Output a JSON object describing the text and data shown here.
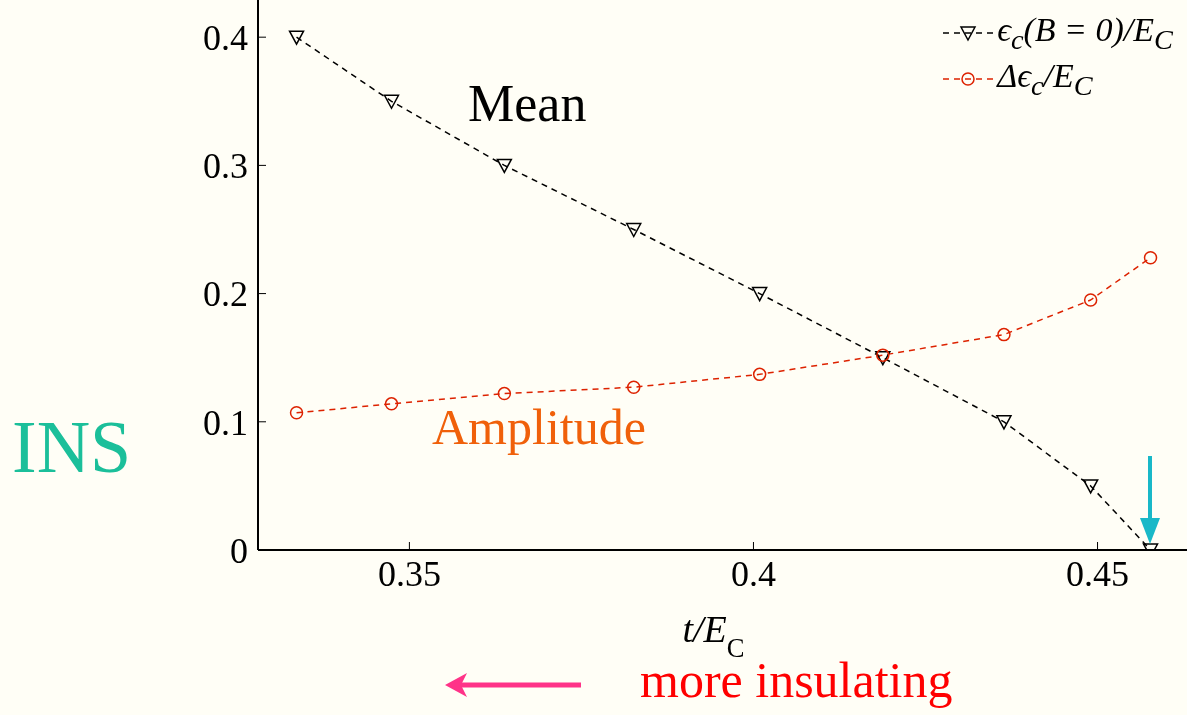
{
  "chart_data": {
    "type": "line",
    "xlabel": "t/E$_{C}$",
    "xlim": [
      0.328,
      0.463
    ],
    "xticks": [
      0.35,
      0.4,
      0.45
    ],
    "ylim": [
      0,
      0.429
    ],
    "yticks": [
      0,
      0.1,
      0.2,
      0.3,
      0.4
    ],
    "legend": "top right",
    "line_style": "dashed",
    "x": [
      0.3336,
      0.3474,
      0.3638,
      0.3826,
      0.4009,
      0.4188,
      0.4364,
      0.449,
      0.4577
    ],
    "series": [
      {
        "name": "ϵ$_{c}$(B = 0)/E$_{C}$",
        "color": "#000000",
        "marker": "triangle",
        "values": [
          0.4,
          0.35,
          0.3,
          0.25,
          0.2,
          0.15,
          0.1,
          0.05,
          0
        ]
      },
      {
        "name": "Δϵ$_{c}$/E$_{C}$",
        "color": "#dd2200",
        "marker": "circle",
        "values": [
          0.107,
          0.114,
          0.122,
          0.127,
          0.137,
          0.152,
          0.168,
          0.195,
          0.228
        ]
      }
    ],
    "annotations": [
      "Mean",
      "Amplitude",
      "INS",
      "more insulating"
    ]
  }
}
